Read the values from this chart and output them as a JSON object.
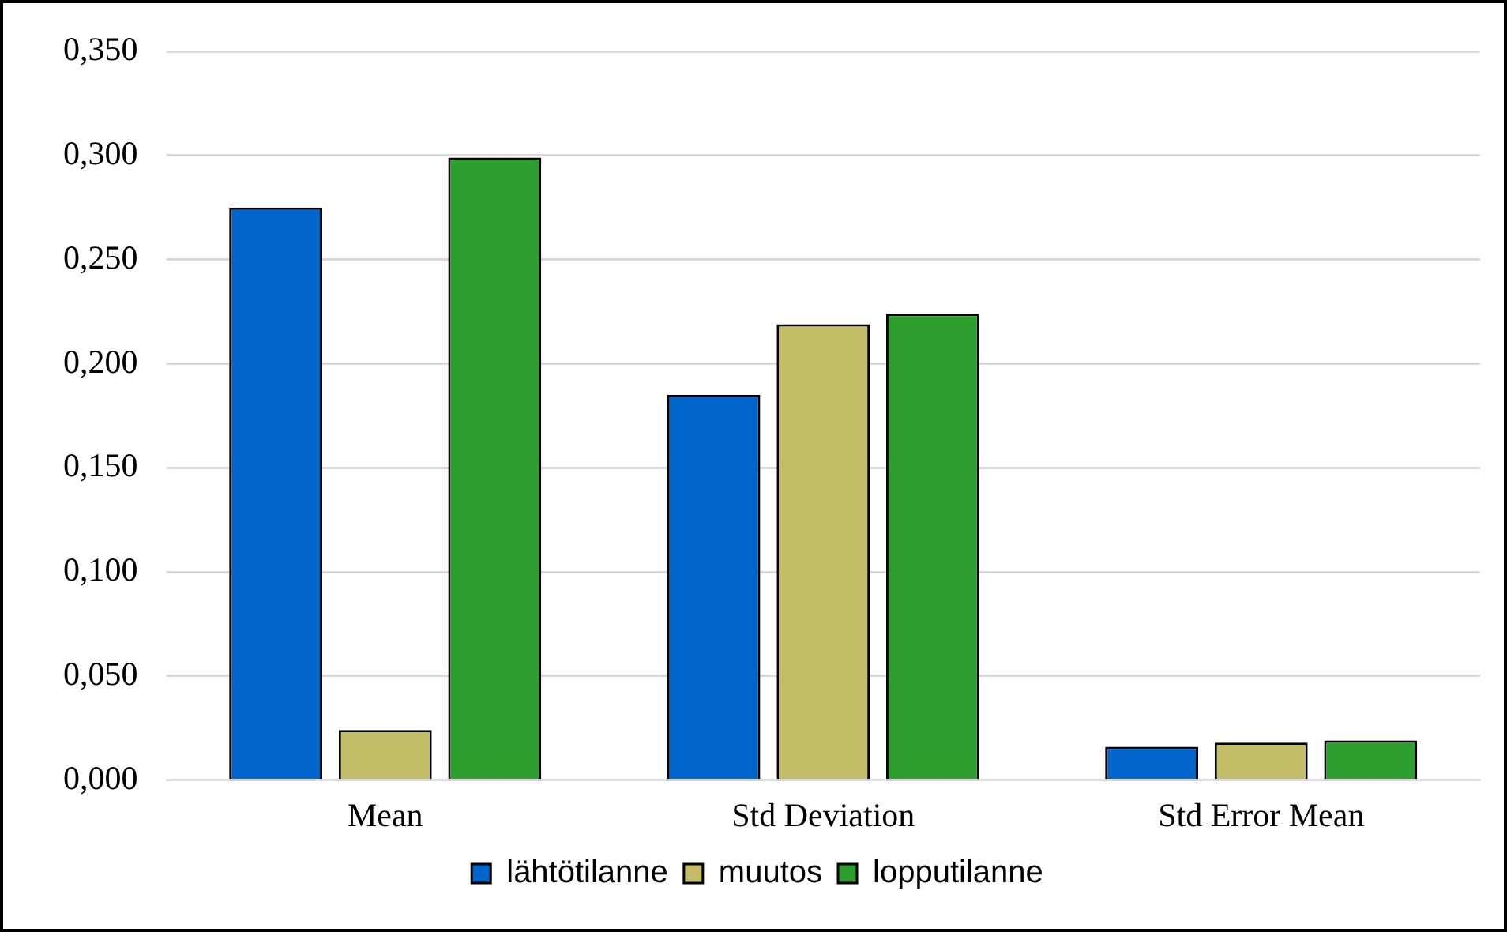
{
  "chart_data": {
    "type": "bar",
    "categories": [
      "Mean",
      "Std Deviation",
      "Std Error Mean"
    ],
    "series": [
      {
        "name": "lähtötilanne",
        "color": "#0066cc",
        "values": [
          0.275,
          0.185,
          0.016
        ]
      },
      {
        "name": "muutos",
        "color": "#c4bd67",
        "values": [
          0.024,
          0.219,
          0.018
        ]
      },
      {
        "name": "lopputilanne",
        "color": "#2e9e2e",
        "values": [
          0.299,
          0.224,
          0.019
        ]
      }
    ],
    "ylim": [
      0,
      0.35
    ],
    "yticks": [
      {
        "value": 0,
        "label": "0,000"
      },
      {
        "value": 0.05,
        "label": "0,050"
      },
      {
        "value": 0.1,
        "label": "0,100"
      },
      {
        "value": 0.15,
        "label": "0,150"
      },
      {
        "value": 0.2,
        "label": "0,200"
      },
      {
        "value": 0.25,
        "label": "0,250"
      },
      {
        "value": 0.3,
        "label": "0,300"
      },
      {
        "value": 0.35,
        "label": "0,350"
      }
    ],
    "grid": "y",
    "legend": "bottom"
  }
}
